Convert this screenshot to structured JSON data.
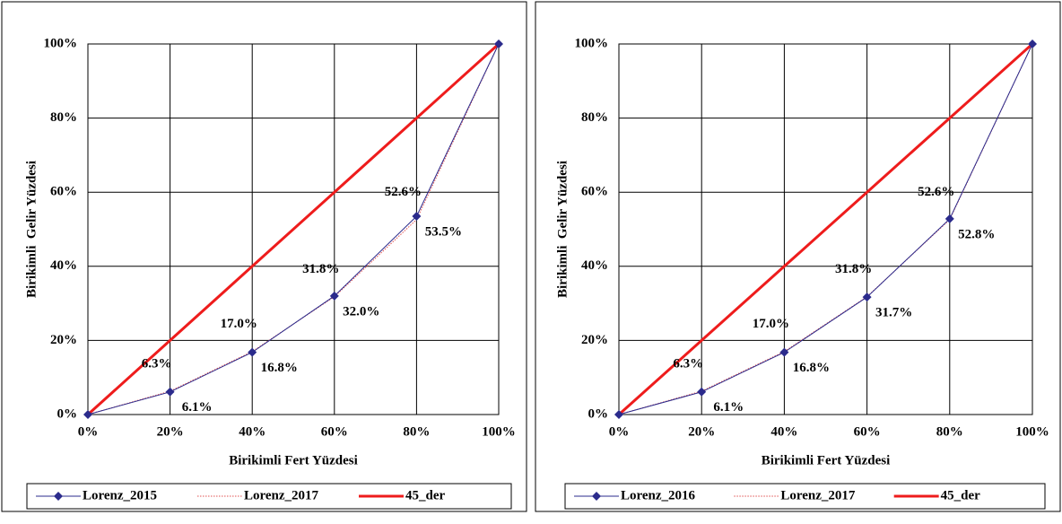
{
  "chart_data": [
    {
      "type": "line",
      "xlabel": "Birikimli Fert Yüzdesi",
      "ylabel": "Birikimli  Gelir Yüzdesi",
      "x": [
        0,
        20,
        40,
        60,
        80,
        100
      ],
      "xlim": [
        0,
        100
      ],
      "ylim": [
        0,
        100
      ],
      "grid": true,
      "xticks": [
        {
          "value": 0,
          "label": "0%"
        },
        {
          "value": 20,
          "label": "20%"
        },
        {
          "value": 40,
          "label": "40%"
        },
        {
          "value": 60,
          "label": "60%"
        },
        {
          "value": 80,
          "label": "80%"
        },
        {
          "value": 100,
          "label": "100%"
        }
      ],
      "yticks": [
        {
          "value": 0,
          "label": "0%"
        },
        {
          "value": 20,
          "label": "20%"
        },
        {
          "value": 40,
          "label": "40%"
        },
        {
          "value": 60,
          "label": "60%"
        },
        {
          "value": 80,
          "label": "80%"
        },
        {
          "value": 100,
          "label": "100%"
        }
      ],
      "legend": "bottom",
      "series": [
        {
          "name": "Lorenz_2015",
          "color": "#2b2b8c",
          "marker": "diamond",
          "values": [
            0,
            6.1,
            16.8,
            32.0,
            53.5,
            100
          ],
          "value_labels": [
            null,
            "6.1%",
            "16.8%",
            "32.0%",
            "53.5%",
            null
          ]
        },
        {
          "name": "Lorenz_2017",
          "color": "#e05050",
          "dash": "dotted",
          "values": [
            0,
            6.3,
            17.0,
            31.8,
            52.6,
            100
          ],
          "value_labels": [
            null,
            "6.3%",
            "17.0%",
            "31.8%",
            "52.6%",
            null
          ]
        },
        {
          "name": "45_der",
          "color": "#ee1c1c",
          "width": 3,
          "values": [
            0,
            20,
            40,
            60,
            80,
            100
          ]
        }
      ]
    },
    {
      "type": "line",
      "xlabel": "Birikimli Fert Yüzdesi",
      "ylabel": "Birikimli  Gelir Yüzdesi",
      "x": [
        0,
        20,
        40,
        60,
        80,
        100
      ],
      "xlim": [
        0,
        100
      ],
      "ylim": [
        0,
        100
      ],
      "grid": true,
      "xticks": [
        {
          "value": 0,
          "label": "0%"
        },
        {
          "value": 20,
          "label": "20%"
        },
        {
          "value": 40,
          "label": "40%"
        },
        {
          "value": 60,
          "label": "60%"
        },
        {
          "value": 80,
          "label": "80%"
        },
        {
          "value": 100,
          "label": "100%"
        }
      ],
      "yticks": [
        {
          "value": 0,
          "label": "0%"
        },
        {
          "value": 20,
          "label": "20%"
        },
        {
          "value": 40,
          "label": "40%"
        },
        {
          "value": 60,
          "label": "60%"
        },
        {
          "value": 80,
          "label": "80%"
        },
        {
          "value": 100,
          "label": "100%"
        }
      ],
      "legend": "bottom",
      "series": [
        {
          "name": "Lorenz_2016",
          "color": "#2b2b8c",
          "marker": "diamond",
          "values": [
            0,
            6.1,
            16.8,
            31.7,
            52.8,
            100
          ],
          "value_labels": [
            null,
            "6.1%",
            "16.8%",
            "31.7%",
            "52.8%",
            null
          ]
        },
        {
          "name": "Lorenz_2017",
          "color": "#e05050",
          "dash": "dotted",
          "values": [
            0,
            6.3,
            17.0,
            31.8,
            52.6,
            100
          ],
          "value_labels": [
            null,
            "6.3%",
            "17.0%",
            "31.8%",
            "52.6%",
            null
          ]
        },
        {
          "name": "45_der",
          "color": "#ee1c1c",
          "width": 3,
          "values": [
            0,
            20,
            40,
            60,
            80,
            100
          ]
        }
      ]
    }
  ]
}
